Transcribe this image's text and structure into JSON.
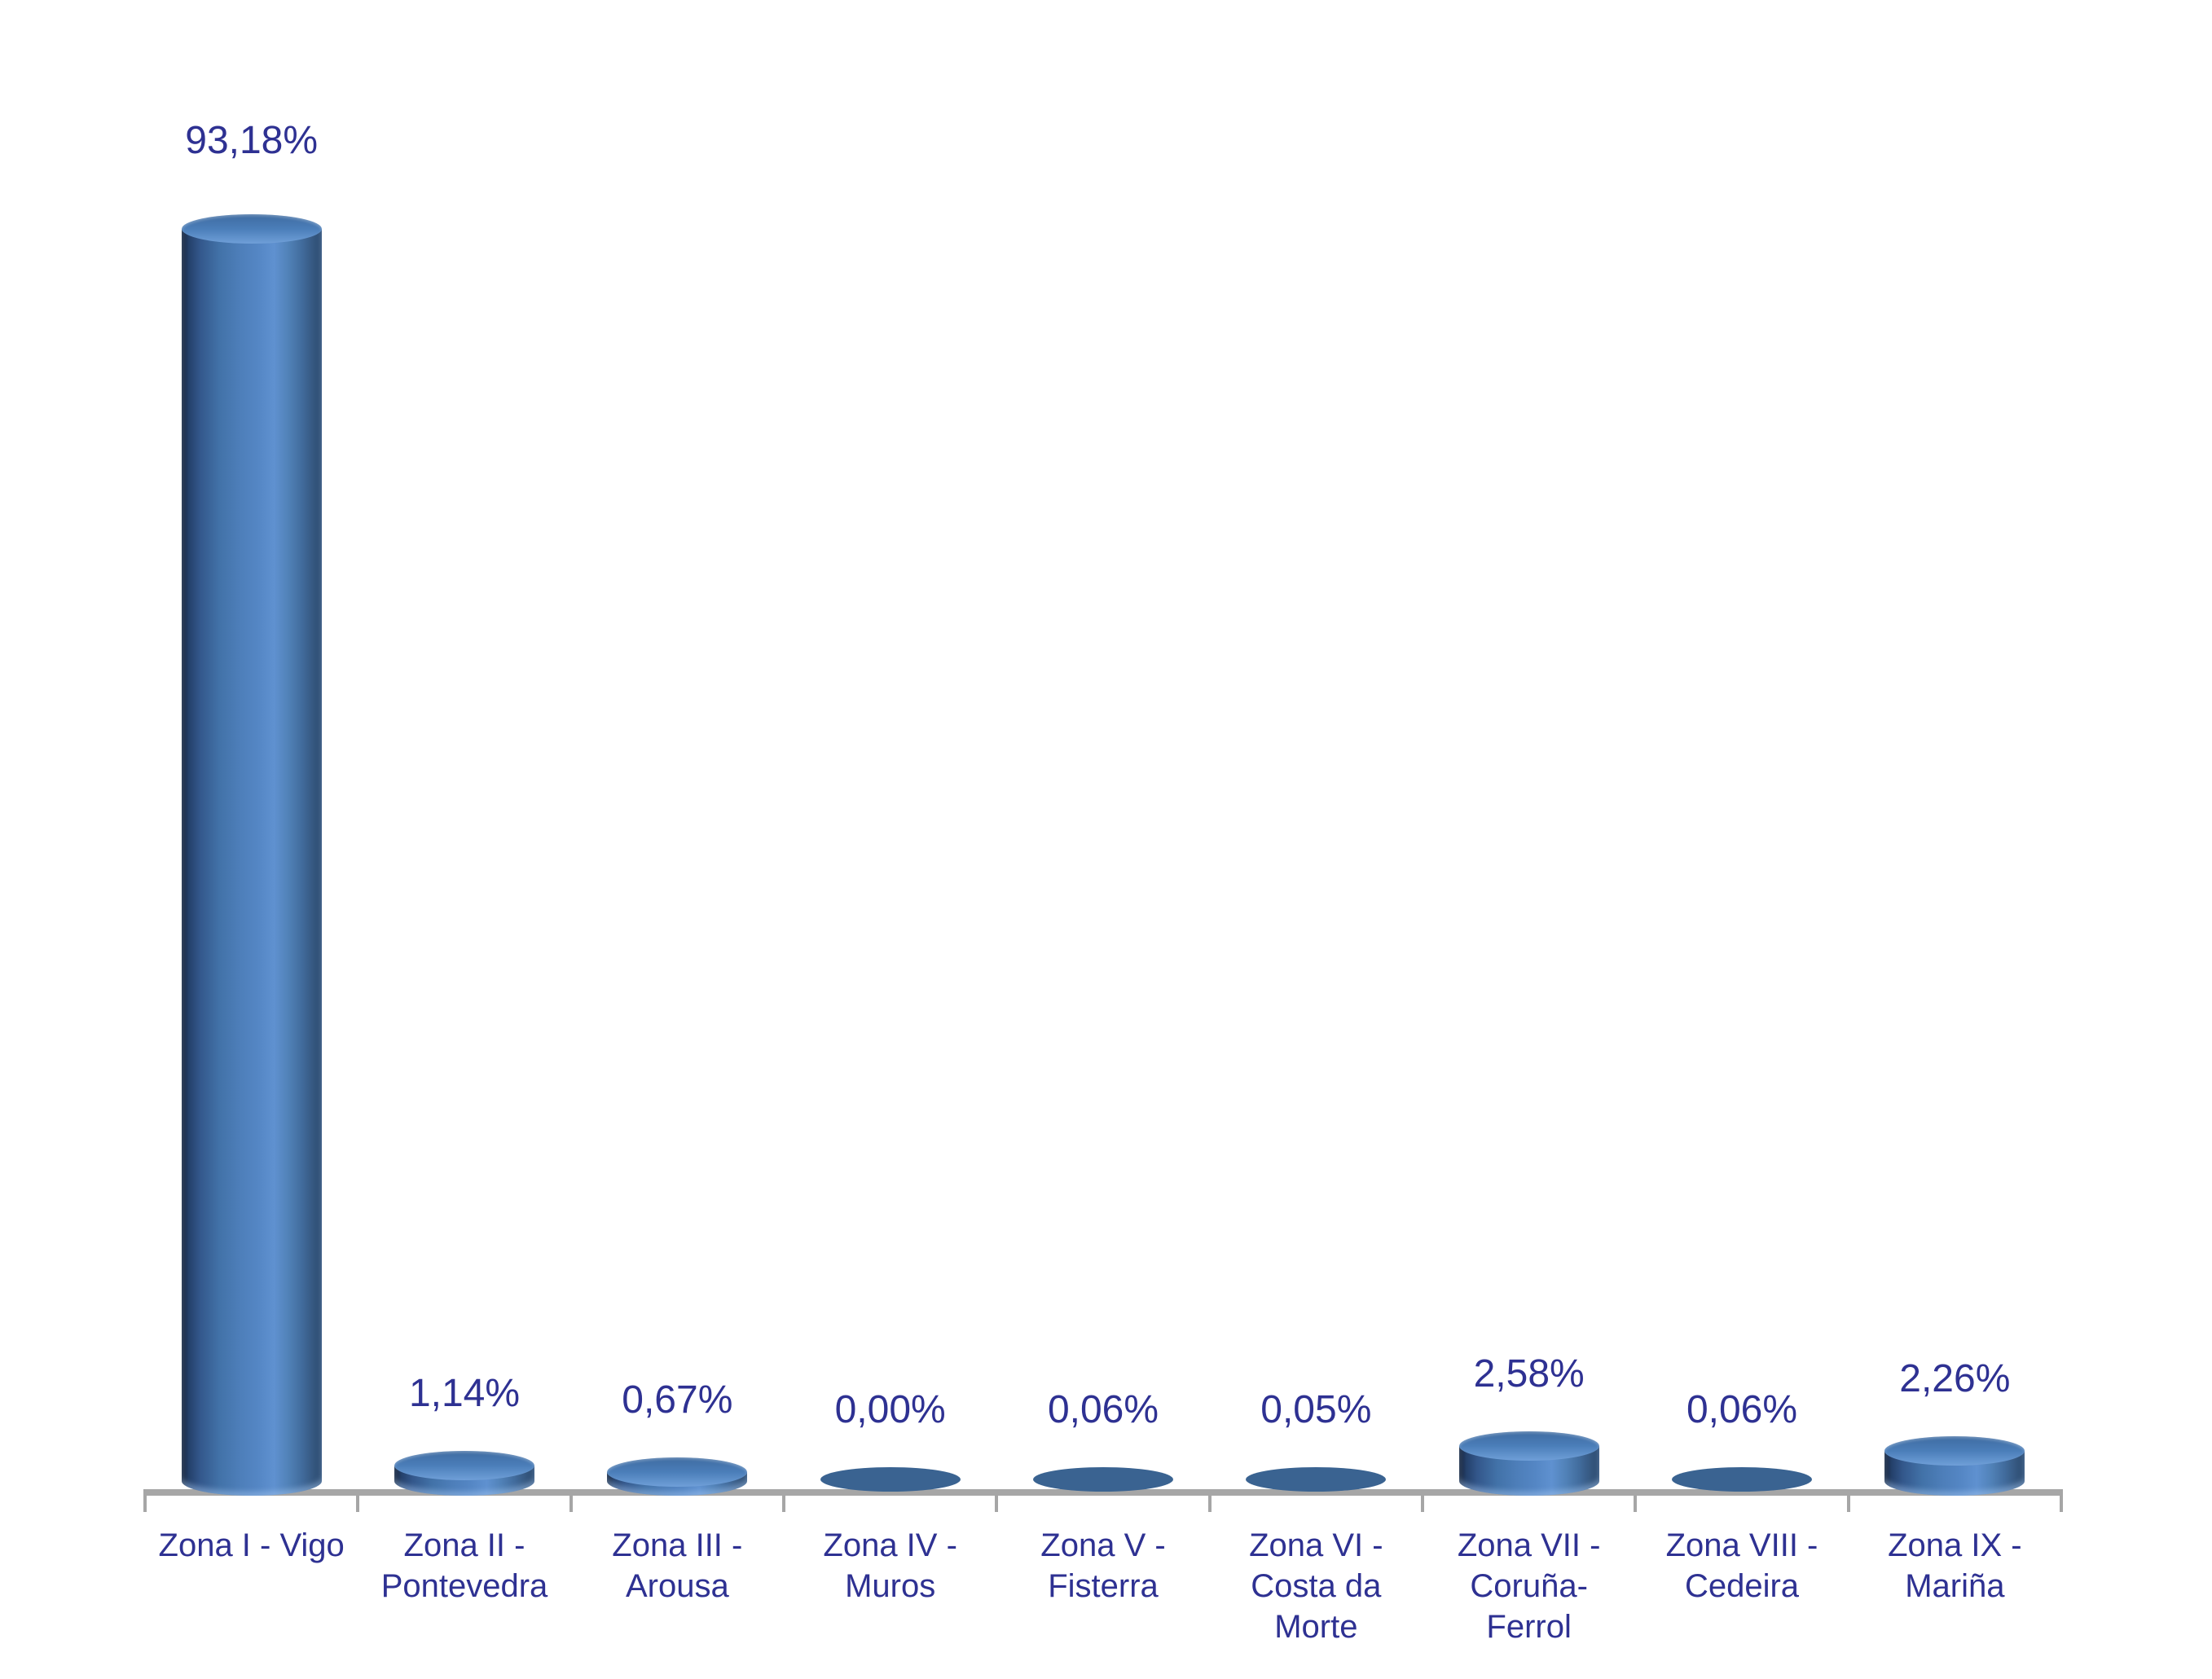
{
  "chart_data": {
    "type": "bar",
    "subtype": "cylinder-3d",
    "title": "",
    "xlabel": "",
    "ylabel": "",
    "categories": [
      "Zona I - Vigo",
      "Zona II - Pontevedra",
      "Zona III - Arousa",
      "Zona IV - Muros",
      "Zona V - Fisterra",
      "Zona VI - Costa da Morte",
      "Zona VII - Coruña-Ferrol",
      "Zona VIII - Cedeira",
      "Zona IX - Mariña"
    ],
    "values": [
      93.18,
      1.14,
      0.67,
      0.0,
      0.06,
      0.05,
      2.58,
      0.06,
      2.26
    ],
    "display_values": [
      "93,18%",
      "1,14%",
      "0,67%",
      "0,00%",
      "0,06%",
      "0,05%",
      "2,58%",
      "0,06%",
      "2,26%"
    ],
    "ylim": [
      0,
      100
    ],
    "grid": false,
    "legend": "none",
    "decimal_separator": ",",
    "value_axis_visible": false,
    "colors": {
      "bar_fill_main": "#4f81bd",
      "bar_side_dark": "#16263f",
      "bar_side_light": "#5f91d0",
      "bar_top_front": "#6f9fd8",
      "bar_top_back": "#3e6ba1",
      "bar_flat_disc": "#3a6391",
      "data_label_text": "#2e3192",
      "axis_line": "#a6a6a6",
      "background": "#ffffff"
    }
  }
}
